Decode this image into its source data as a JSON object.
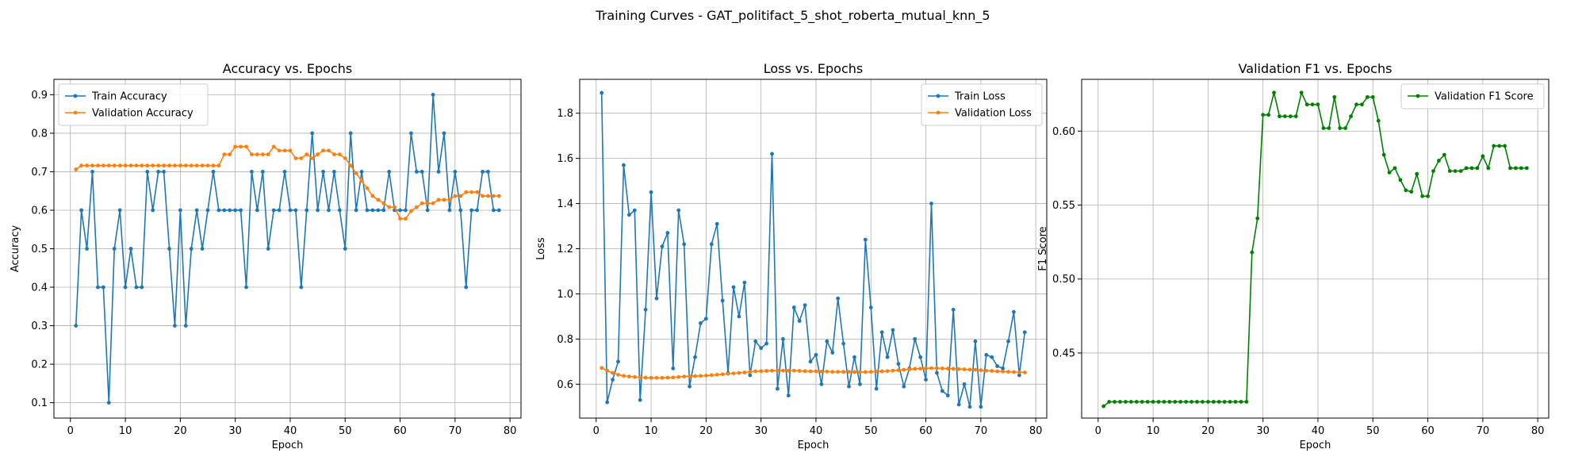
{
  "suptitle": "Training Curves - GAT_politifact_5_shot_roberta_mutual_knn_5",
  "chart_data": [
    {
      "type": "line",
      "title": "Accuracy vs. Epochs",
      "xlabel": "Epoch",
      "ylabel": "Accuracy",
      "grid": true,
      "legend": "top-left",
      "xlim": [
        -3,
        82
      ],
      "ylim": [
        0.06,
        0.94
      ],
      "xticks": [
        0,
        10,
        20,
        30,
        40,
        50,
        60,
        70,
        80
      ],
      "yticks": [
        0.1,
        0.2,
        0.3,
        0.4,
        0.5,
        0.6,
        0.7,
        0.8,
        0.9
      ],
      "ytick_labels": [
        "0.1",
        "0.2",
        "0.3",
        "0.4",
        "0.5",
        "0.6",
        "0.7",
        "0.8",
        "0.9"
      ],
      "series": [
        {
          "name": "Train Accuracy",
          "color": "#1f77b4",
          "x_start": 1,
          "values": [
            0.3,
            0.6,
            0.5,
            0.7,
            0.4,
            0.4,
            0.1,
            0.5,
            0.6,
            0.4,
            0.5,
            0.4,
            0.4,
            0.7,
            0.6,
            0.7,
            0.7,
            0.5,
            0.3,
            0.6,
            0.3,
            0.5,
            0.6,
            0.5,
            0.6,
            0.7,
            0.6,
            0.6,
            0.6,
            0.6,
            0.6,
            0.4,
            0.7,
            0.6,
            0.7,
            0.5,
            0.6,
            0.6,
            0.7,
            0.6,
            0.6,
            0.4,
            0.6,
            0.8,
            0.6,
            0.7,
            0.6,
            0.7,
            0.6,
            0.5,
            0.8,
            0.6,
            0.7,
            0.6,
            0.6,
            0.6,
            0.6,
            0.7,
            0.6,
            0.6,
            0.6,
            0.8,
            0.7,
            0.7,
            0.6,
            0.9,
            0.7,
            0.8,
            0.6,
            0.7,
            0.6,
            0.4,
            0.6,
            0.6,
            0.7,
            0.7,
            0.6,
            0.6
          ]
        },
        {
          "name": "Validation Accuracy",
          "color": "#ff7f0e",
          "x_start": 1,
          "values": [
            0.706,
            0.716,
            0.716,
            0.716,
            0.716,
            0.716,
            0.716,
            0.716,
            0.716,
            0.716,
            0.716,
            0.716,
            0.716,
            0.716,
            0.716,
            0.716,
            0.716,
            0.716,
            0.716,
            0.716,
            0.716,
            0.716,
            0.716,
            0.716,
            0.716,
            0.716,
            0.716,
            0.745,
            0.745,
            0.765,
            0.765,
            0.765,
            0.745,
            0.745,
            0.745,
            0.745,
            0.765,
            0.755,
            0.755,
            0.755,
            0.735,
            0.735,
            0.745,
            0.735,
            0.745,
            0.755,
            0.755,
            0.745,
            0.745,
            0.735,
            0.716,
            0.696,
            0.676,
            0.657,
            0.637,
            0.627,
            0.618,
            0.608,
            0.608,
            0.578,
            0.578,
            0.598,
            0.608,
            0.618,
            0.618,
            0.618,
            0.627,
            0.627,
            0.627,
            0.637,
            0.637,
            0.647,
            0.647,
            0.647,
            0.637,
            0.637,
            0.637,
            0.637
          ]
        }
      ]
    },
    {
      "type": "line",
      "title": "Loss vs. Epochs",
      "xlabel": "Epoch",
      "ylabel": "Loss",
      "grid": true,
      "legend": "top-right",
      "xlim": [
        -3,
        82
      ],
      "ylim": [
        0.45,
        1.95
      ],
      "xticks": [
        0,
        10,
        20,
        30,
        40,
        50,
        60,
        70,
        80
      ],
      "yticks": [
        0.6,
        0.8,
        1.0,
        1.2,
        1.4,
        1.6,
        1.8
      ],
      "ytick_labels": [
        "0.6",
        "0.8",
        "1.0",
        "1.2",
        "1.4",
        "1.6",
        "1.8"
      ],
      "series": [
        {
          "name": "Train Loss",
          "color": "#1f77b4",
          "x_start": 1,
          "values": [
            1.89,
            0.52,
            0.62,
            0.7,
            1.57,
            1.35,
            1.37,
            0.53,
            0.93,
            1.45,
            0.98,
            1.21,
            1.27,
            0.67,
            1.37,
            1.22,
            0.59,
            0.72,
            0.87,
            0.89,
            1.22,
            1.31,
            0.97,
            0.65,
            1.03,
            0.9,
            1.05,
            0.64,
            0.79,
            0.76,
            0.78,
            1.62,
            0.58,
            0.8,
            0.55,
            0.94,
            0.88,
            0.95,
            0.7,
            0.73,
            0.6,
            0.79,
            0.74,
            0.98,
            0.78,
            0.59,
            0.72,
            0.6,
            1.24,
            0.94,
            0.58,
            0.83,
            0.72,
            0.84,
            0.69,
            0.59,
            0.67,
            0.8,
            0.72,
            0.62,
            1.4,
            0.65,
            0.57,
            0.55,
            0.93,
            0.51,
            0.6,
            0.5,
            0.79,
            0.5,
            0.73,
            0.72,
            0.68,
            0.67,
            0.79,
            0.92,
            0.64,
            0.83
          ]
        },
        {
          "name": "Validation Loss",
          "color": "#ff7f0e",
          "x_start": 1,
          "values": [
            0.672,
            0.66,
            0.65,
            0.642,
            0.637,
            0.634,
            0.632,
            0.63,
            0.629,
            0.628,
            0.628,
            0.628,
            0.629,
            0.63,
            0.632,
            0.634,
            0.635,
            0.636,
            0.637,
            0.638,
            0.64,
            0.642,
            0.644,
            0.646,
            0.648,
            0.65,
            0.652,
            0.655,
            0.657,
            0.658,
            0.659,
            0.66,
            0.66,
            0.66,
            0.66,
            0.66,
            0.659,
            0.658,
            0.657,
            0.657,
            0.656,
            0.656,
            0.655,
            0.655,
            0.655,
            0.655,
            0.654,
            0.654,
            0.654,
            0.655,
            0.656,
            0.657,
            0.658,
            0.66,
            0.662,
            0.664,
            0.666,
            0.668,
            0.669,
            0.67,
            0.671,
            0.671,
            0.67,
            0.669,
            0.668,
            0.667,
            0.666,
            0.665,
            0.664,
            0.662,
            0.66,
            0.659,
            0.657,
            0.656,
            0.655,
            0.654,
            0.653,
            0.652
          ]
        }
      ]
    },
    {
      "type": "line",
      "title": "Validation F1 vs. Epochs",
      "xlabel": "Epoch",
      "ylabel": "F1 Score",
      "grid": true,
      "legend": "top-right",
      "xlim": [
        -3,
        82
      ],
      "ylim": [
        0.406,
        0.635
      ],
      "xticks": [
        0,
        10,
        20,
        30,
        40,
        50,
        60,
        70,
        80
      ],
      "yticks": [
        0.45,
        0.5,
        0.55,
        0.6
      ],
      "ytick_labels": [
        "0.45",
        "0.50",
        "0.55",
        "0.60"
      ],
      "series": [
        {
          "name": "Validation F1 Score",
          "color": "#008000",
          "x_start": 1,
          "values": [
            0.414,
            0.417,
            0.417,
            0.417,
            0.417,
            0.417,
            0.417,
            0.417,
            0.417,
            0.417,
            0.417,
            0.417,
            0.417,
            0.417,
            0.417,
            0.417,
            0.417,
            0.417,
            0.417,
            0.417,
            0.417,
            0.417,
            0.417,
            0.417,
            0.417,
            0.417,
            0.417,
            0.518,
            0.541,
            0.611,
            0.611,
            0.626,
            0.61,
            0.61,
            0.61,
            0.61,
            0.626,
            0.618,
            0.618,
            0.618,
            0.602,
            0.602,
            0.623,
            0.602,
            0.602,
            0.61,
            0.618,
            0.618,
            0.623,
            0.623,
            0.607,
            0.584,
            0.572,
            0.575,
            0.567,
            0.56,
            0.559,
            0.571,
            0.556,
            0.556,
            0.573,
            0.58,
            0.584,
            0.573,
            0.573,
            0.573,
            0.575,
            0.575,
            0.575,
            0.583,
            0.575,
            0.59,
            0.59,
            0.59,
            0.575,
            0.575,
            0.575,
            0.575
          ]
        }
      ]
    }
  ]
}
